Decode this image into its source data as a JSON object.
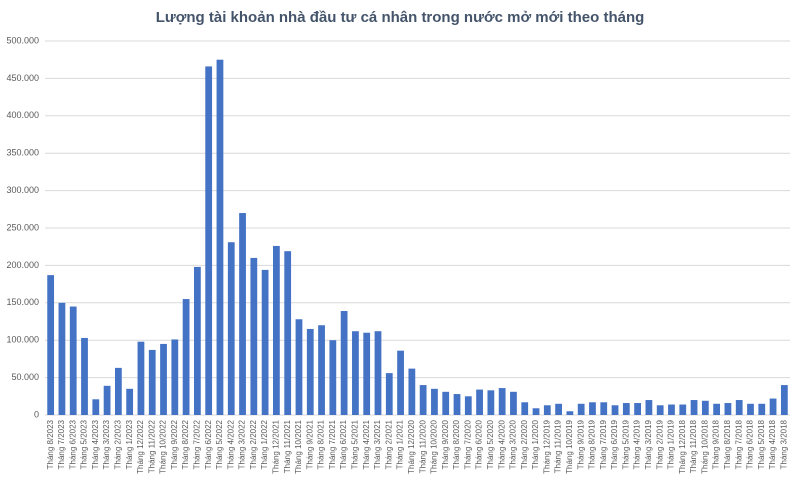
{
  "chart_data": {
    "type": "bar",
    "title": "Lượng tài khoản nhà đầu tư cá nhân trong nước mở mới theo tháng",
    "categories": [
      "Tháng 8/2023",
      "Tháng 7/2023",
      "Tháng 6/2023",
      "Tháng 5/2023",
      "Tháng 4/2023",
      "Tháng 3/2023",
      "Tháng 2/2023",
      "Tháng 1/2023",
      "Tháng 12/2022",
      "Tháng 11/2022",
      "Tháng 10/2022",
      "Tháng 9/2022",
      "Tháng 8/2022",
      "Tháng 7/2022",
      "Tháng 6/2022",
      "Tháng 5/2022",
      "Tháng 4/2022",
      "Tháng 3/2022",
      "Tháng 2/2022",
      "Tháng 1/2022",
      "Tháng 12/2021",
      "Tháng 11/2021",
      "Tháng 10/2021",
      "Tháng 9/2021",
      "Tháng 8/2021",
      "Tháng 7/2021",
      "Tháng 6/2021",
      "Tháng 5/2021",
      "Tháng 4/2021",
      "Tháng 3/2021",
      "Tháng 2/2021",
      "Tháng 1/2021",
      "Tháng 12/2020",
      "Tháng 11/2020",
      "Tháng 10/2020",
      "Tháng 9/2020",
      "Tháng 8/2020",
      "Tháng 7/2020",
      "Tháng 6/2020",
      "Tháng 5/2020",
      "Tháng 4/2020",
      "Tháng 3/2020",
      "Tháng 2/2020",
      "Tháng 1/2020",
      "Tháng 12/2019",
      "Tháng 11/2019",
      "Tháng 10/2019",
      "Tháng 9/2019",
      "Tháng 8/2019",
      "Tháng 7/2019",
      "Tháng 6/2019",
      "Tháng 5/2019",
      "Tháng 4/2019",
      "Tháng 3/2019",
      "Tháng 2/2019",
      "Tháng 1/2019",
      "Tháng 12/2018",
      "Tháng 11/2018",
      "Tháng 10/2018",
      "Tháng 9/2018",
      "Tháng 8/2018",
      "Tháng 7/2018",
      "Tháng 6/2018",
      "Tháng 5/2018",
      "Tháng 4/2018",
      "Tháng 3/2018"
    ],
    "values": [
      187000,
      150000,
      145000,
      103000,
      21000,
      39000,
      63000,
      35000,
      98000,
      87000,
      95000,
      101000,
      155000,
      198000,
      466000,
      475000,
      231000,
      270000,
      210000,
      194000,
      226000,
      219000,
      128000,
      115000,
      120000,
      100000,
      139000,
      112000,
      110000,
      112000,
      56000,
      86000,
      62000,
      40000,
      35000,
      31000,
      28000,
      25000,
      34000,
      33000,
      36000,
      31000,
      17000,
      9000,
      13000,
      15000,
      5000,
      15000,
      17000,
      17000,
      13000,
      16000,
      16000,
      20000,
      13000,
      14000,
      14000,
      20000,
      19000,
      15000,
      16000,
      20000,
      15000,
      15000,
      22000,
      40000
    ],
    "color": "#4472c4",
    "ylim": [
      0,
      500000
    ],
    "yticks": [
      0,
      {
        "value": 50000,
        "label": "50.000"
      },
      {
        "value": 100000,
        "label": "100.000"
      },
      {
        "value": 150000,
        "label": "150.000"
      },
      {
        "value": 200000,
        "label": "200.000"
      },
      {
        "value": 250000,
        "label": "250.000"
      },
      {
        "value": 300000,
        "label": "300.000"
      },
      {
        "value": 350000,
        "label": "350.000"
      },
      {
        "value": 400000,
        "label": "400.000"
      },
      {
        "value": 450000,
        "label": "450.000"
      },
      {
        "value": 500000,
        "label": "500.000"
      }
    ],
    "grid": true
  }
}
